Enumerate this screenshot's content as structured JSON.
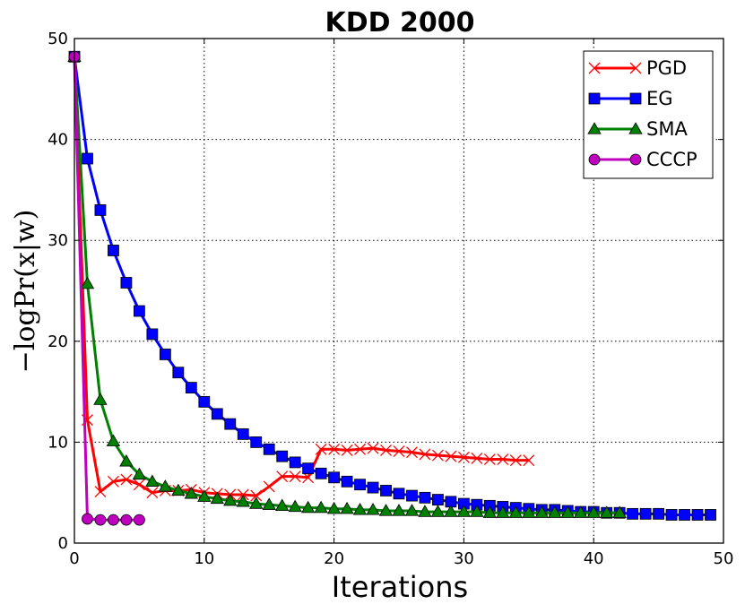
{
  "chart_data": {
    "type": "line",
    "title": "KDD 2000",
    "xlabel": "Iterations",
    "ylabel": "−logPr(x|w)",
    "xlim": [
      0,
      50
    ],
    "ylim": [
      0,
      50
    ],
    "xticks": [
      0,
      10,
      20,
      30,
      40,
      50
    ],
    "yticks": [
      0,
      10,
      20,
      30,
      40,
      50
    ],
    "grid": true,
    "legend_position": "top-right",
    "series": [
      {
        "name": "PGD",
        "color": "#ff0000",
        "marker": "x",
        "x": [
          0,
          1,
          2,
          3,
          4,
          5,
          6,
          7,
          8,
          9,
          10,
          11,
          12,
          13,
          14,
          15,
          16,
          17,
          18,
          19,
          20,
          21,
          22,
          23,
          24,
          25,
          26,
          27,
          28,
          29,
          30,
          31,
          32,
          33,
          34,
          35
        ],
        "values": [
          48.2,
          12.2,
          5.1,
          6.1,
          6.3,
          5.8,
          5.0,
          5.2,
          5.2,
          5.3,
          5.0,
          4.9,
          4.8,
          4.8,
          4.7,
          5.6,
          6.6,
          6.6,
          6.5,
          9.3,
          9.3,
          9.2,
          9.3,
          9.4,
          9.2,
          9.1,
          9.0,
          8.8,
          8.7,
          8.6,
          8.5,
          8.4,
          8.3,
          8.3,
          8.2,
          8.2
        ]
      },
      {
        "name": "EG",
        "color": "#0000ff",
        "marker": "square",
        "x": [
          0,
          1,
          2,
          3,
          4,
          5,
          6,
          7,
          8,
          9,
          10,
          11,
          12,
          13,
          14,
          15,
          16,
          17,
          18,
          19,
          20,
          21,
          22,
          23,
          24,
          25,
          26,
          27,
          28,
          29,
          30,
          31,
          32,
          33,
          34,
          35,
          36,
          37,
          38,
          39,
          40,
          41,
          42,
          43,
          44,
          45,
          46,
          47,
          48,
          49
        ],
        "values": [
          48.2,
          38.1,
          33.0,
          29.0,
          25.8,
          23.0,
          20.7,
          18.7,
          16.9,
          15.4,
          14.0,
          12.8,
          11.8,
          10.8,
          10.0,
          9.3,
          8.6,
          8.0,
          7.4,
          6.9,
          6.5,
          6.1,
          5.8,
          5.5,
          5.2,
          4.9,
          4.7,
          4.5,
          4.3,
          4.1,
          3.9,
          3.8,
          3.7,
          3.6,
          3.5,
          3.4,
          3.3,
          3.3,
          3.2,
          3.1,
          3.1,
          3.0,
          3.0,
          2.9,
          2.9,
          2.9,
          2.8,
          2.8,
          2.8,
          2.8
        ]
      },
      {
        "name": "SMA",
        "color": "#008000",
        "marker": "triangle",
        "x": [
          0,
          1,
          2,
          3,
          4,
          5,
          6,
          7,
          8,
          9,
          10,
          11,
          12,
          13,
          14,
          15,
          16,
          17,
          18,
          19,
          20,
          21,
          22,
          23,
          24,
          25,
          26,
          27,
          28,
          29,
          30,
          31,
          32,
          33,
          34,
          35,
          36,
          37,
          38,
          39,
          40,
          41,
          42
        ],
        "values": [
          48.2,
          25.7,
          14.2,
          10.1,
          8.1,
          6.8,
          6.1,
          5.6,
          5.2,
          4.9,
          4.6,
          4.4,
          4.2,
          4.1,
          3.9,
          3.8,
          3.7,
          3.6,
          3.5,
          3.5,
          3.4,
          3.4,
          3.3,
          3.3,
          3.2,
          3.2,
          3.2,
          3.1,
          3.1,
          3.1,
          3.1,
          3.1,
          3.0,
          3.0,
          3.0,
          3.0,
          3.0,
          3.0,
          3.0,
          3.0,
          3.0,
          3.0,
          3.0
        ]
      },
      {
        "name": "CCCP",
        "color": "#bf00bf",
        "marker": "circle",
        "x": [
          0,
          1,
          2,
          3,
          4,
          5
        ],
        "values": [
          48.2,
          2.4,
          2.3,
          2.3,
          2.3,
          2.3
        ]
      }
    ]
  }
}
